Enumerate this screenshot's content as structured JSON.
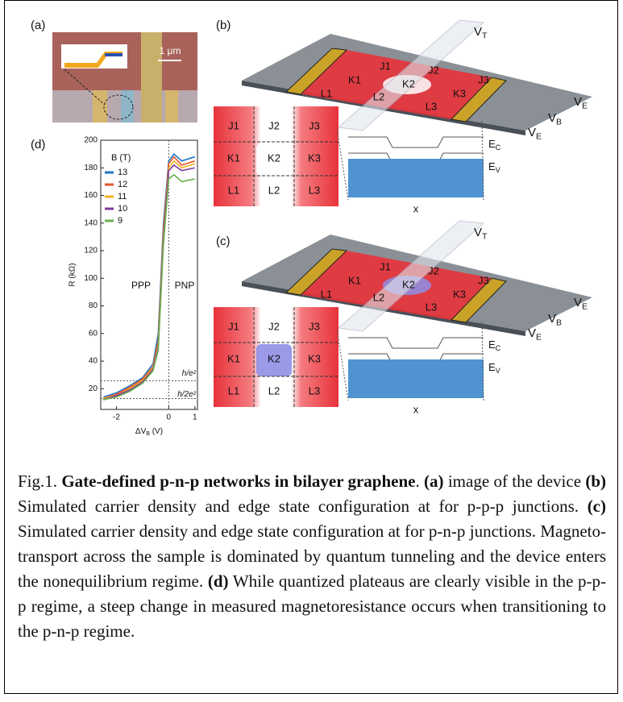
{
  "figure": {
    "panel_a": {
      "label": "(a)",
      "scale_bar": "1 μm"
    },
    "panel_b": {
      "label": "(b)",
      "center_color": "#ffffff",
      "gates": [
        {
          "main": "V",
          "sub": "T"
        },
        {
          "main": "V",
          "sub": "E"
        },
        {
          "main": "V",
          "sub": "B"
        },
        {
          "main": "V",
          "sub": "E"
        }
      ],
      "regions": [
        "J1",
        "J2",
        "J3",
        "K1",
        "K2",
        "K3",
        "L1",
        "L2",
        "L3"
      ],
      "bands": [
        {
          "main": "E",
          "sub": "C"
        },
        {
          "main": "E",
          "sub": "V"
        }
      ],
      "x_axis": "x"
    },
    "panel_c": {
      "label": "(c)",
      "center_color": "#8f8fe6",
      "gates": [
        {
          "main": "V",
          "sub": "T"
        },
        {
          "main": "V",
          "sub": "E"
        },
        {
          "main": "V",
          "sub": "B"
        },
        {
          "main": "V",
          "sub": "E"
        }
      ],
      "regions": [
        "J1",
        "J2",
        "J3",
        "K1",
        "K2",
        "K3",
        "L1",
        "L2",
        "L3"
      ],
      "bands": [
        {
          "main": "E",
          "sub": "C"
        },
        {
          "main": "E",
          "sub": "V"
        }
      ],
      "x_axis": "x"
    },
    "panel_d": {
      "label": "(d)"
    }
  },
  "chart_data": {
    "type": "line",
    "ylabel": "R (kΩ)",
    "xlabel": {
      "main": "ΔV",
      "sub": "B",
      "tail": " (V)"
    },
    "legend_title": "B (T)",
    "x": [
      -2.5,
      -2,
      -1.5,
      -1,
      -0.6,
      -0.4,
      -0.2,
      0,
      0.2,
      0.5,
      1
    ],
    "series": [
      {
        "name": "13",
        "color": "#1f77c4",
        "values": [
          14,
          17,
          22,
          28,
          38,
          60,
          140,
          185,
          190,
          185,
          188
        ]
      },
      {
        "name": "12",
        "color": "#e8562a",
        "values": [
          13,
          16,
          21,
          27,
          36,
          55,
          135,
          183,
          188,
          182,
          185
        ]
      },
      {
        "name": "11",
        "color": "#f2b01e",
        "values": [
          13,
          15,
          20,
          26,
          35,
          52,
          130,
          180,
          185,
          180,
          183
        ]
      },
      {
        "name": "10",
        "color": "#7e3a9c",
        "values": [
          12,
          15,
          19,
          25,
          34,
          50,
          128,
          178,
          182,
          178,
          180
        ]
      },
      {
        "name": "9",
        "color": "#6ab04c",
        "values": [
          12,
          14,
          18,
          24,
          33,
          48,
          125,
          172,
          175,
          170,
          172
        ]
      }
    ],
    "xlim": [
      -2.6,
      1.1
    ],
    "xticks": [
      -2,
      0,
      1
    ],
    "ylim": [
      5,
      200
    ],
    "yticks": [
      20,
      40,
      60,
      80,
      100,
      120,
      140,
      160,
      180,
      200
    ],
    "reference_lines": [
      {
        "value": 25.8,
        "label": "h/e²"
      },
      {
        "value": 12.9,
        "label": "h/2e²"
      }
    ],
    "vertical_line": 0,
    "annotations": [
      "PPP",
      "PNP"
    ]
  },
  "caption": [
    {
      "text": "Fig.1. ",
      "bold": false
    },
    {
      "text": "Gate-defined p-n-p networks in bilayer graphene",
      "bold": true
    },
    {
      "text": ". ",
      "bold": false
    },
    {
      "text": "(a)",
      "bold": true
    },
    {
      "text": " image of the device ",
      "bold": false
    },
    {
      "text": "(b)",
      "bold": true
    },
    {
      "text": " Simulated carrier density and edge state configuration at for p-p-p junctions. ",
      "bold": false
    },
    {
      "text": "(c)",
      "bold": true
    },
    {
      "text": " Simulated carrier density and edge state configuration at for p-n-p junctions. Magneto-transport across the sample is dominated by quantum tunneling and the device enters the nonequilibrium regime. ",
      "bold": false
    },
    {
      "text": "(d)",
      "bold": true
    },
    {
      "text": " While quantized plateaus are clearly visible in the p-p-p regime, a steep change in measured magnetoresistance occurs when transitioning to the p-n-p regime.",
      "bold": false
    }
  ]
}
